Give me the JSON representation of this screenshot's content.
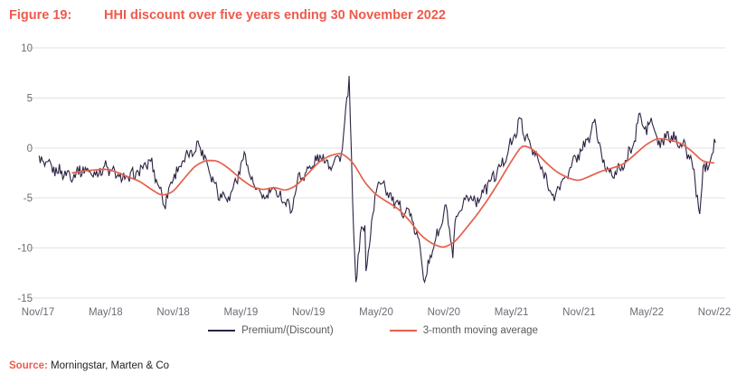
{
  "figure": {
    "label": "Figure 19:",
    "title": "HHI discount over five years ending 30 November 2022"
  },
  "source": {
    "label": "Source:",
    "text": " Morningstar, Marten & Co"
  },
  "legend": [
    {
      "name": "Premium/(Discount)",
      "color": "#2d2243"
    },
    {
      "name": "3-month moving average",
      "color": "#e5604c"
    }
  ],
  "colors": {
    "title_red": "#ee5a4c",
    "navy_line": "#2d2243",
    "red_line": "#e5604c",
    "gridline": "#e2e2e2",
    "axis_text": "#6b6d75",
    "legend_text": "#595959",
    "source_text": "#1f1f1f"
  },
  "chart_data": {
    "type": "line",
    "title": "HHI discount over five years ending 30 November 2022",
    "xlabel": "",
    "ylabel": "",
    "ylim": [
      -15,
      10
    ],
    "y_ticks": [
      10,
      5,
      0,
      -5,
      -10,
      -15
    ],
    "grid": "horizontal",
    "legend_position": "bottom-center",
    "x_unit": "months since Nov 2017",
    "x_tick_months": [
      0,
      6,
      12,
      18,
      24,
      30,
      36,
      42,
      48,
      54,
      60
    ],
    "x_tick_labels": [
      "Nov/17",
      "May/18",
      "Nov/18",
      "May/19",
      "Nov/19",
      "May/20",
      "Nov/20",
      "May/21",
      "Nov/21",
      "May/22",
      "Nov/22"
    ],
    "note": "Premium/(Discount) is a daily jagged series; monthly_values are estimated mid-month anchors read from the plot, extremes are notable spikes [month, value].",
    "series": [
      {
        "name": "Premium/(Discount)",
        "style": "jagged-daily",
        "start_month": 0,
        "monthly_values": [
          -1.2,
          -1.9,
          -2.4,
          -2.7,
          -2.1,
          -2.6,
          -1.9,
          -2.8,
          -3.1,
          -2.3,
          -1.3,
          -4.8,
          -2.8,
          -1.2,
          0.0,
          -1.5,
          -4.5,
          -4.9,
          -2.0,
          -3.6,
          -5.0,
          -4.2,
          -5.4,
          -3.2,
          -2.2,
          -0.9,
          -1.6,
          -0.4,
          -9.0,
          -8.0,
          -4.0,
          -4.5,
          -6.0,
          -6.5,
          -10.5,
          -10.0,
          -7.0,
          -7.7,
          -4.8,
          -5.2,
          -3.5,
          -2.0,
          0.5,
          1.8,
          -0.5,
          -2.8,
          -4.2,
          -2.5,
          -0.5,
          1.2,
          -1.2,
          -2.6,
          -1.8,
          1.0,
          1.5,
          0.3,
          1.2,
          0.6,
          -1.2,
          -2.2,
          -0.3
        ],
        "extremes": [
          [
            11.2,
            -5.8
          ],
          [
            14.2,
            0.7
          ],
          [
            18.3,
            -0.4
          ],
          [
            22.5,
            -6.4
          ],
          [
            27.6,
            7.2
          ],
          [
            28.2,
            -13.4
          ],
          [
            28.6,
            -8.5
          ],
          [
            29.1,
            -12.3
          ],
          [
            30.7,
            -3.3
          ],
          [
            34.3,
            -13.4
          ],
          [
            36.2,
            -5.7
          ],
          [
            36.8,
            -11.0
          ],
          [
            42.9,
            2.9
          ],
          [
            45.8,
            -5.3
          ],
          [
            49.4,
            2.9
          ],
          [
            53.3,
            3.4
          ],
          [
            54.4,
            3.0
          ],
          [
            58.7,
            -6.6
          ],
          [
            60.0,
            0.9
          ]
        ]
      },
      {
        "name": "3-month moving average",
        "style": "smooth",
        "start_month": 3,
        "monthly_values": [
          -2.5,
          -2.3,
          -2.2,
          -2.1,
          -2.4,
          -2.9,
          -3.3,
          -4.1,
          -4.8,
          -4.4,
          -3.0,
          -1.7,
          -1.2,
          -1.3,
          -2.1,
          -3.1,
          -3.9,
          -4.2,
          -3.9,
          -4.3,
          -3.7,
          -2.5,
          -1.3,
          -0.7,
          -0.5,
          -1.5,
          -3.5,
          -4.7,
          -5.4,
          -6.1,
          -7.3,
          -8.8,
          -9.6,
          -10.0,
          -9.4,
          -8.0,
          -6.6,
          -5.0,
          -3.2,
          -1.3,
          0.4,
          -0.2,
          -1.4,
          -2.4,
          -3.0,
          -3.3,
          -2.8,
          -2.3,
          -2.0,
          -1.6,
          -0.6,
          0.4,
          1.0,
          0.8,
          0.5,
          -0.3,
          -1.4,
          -1.5
        ]
      }
    ]
  }
}
